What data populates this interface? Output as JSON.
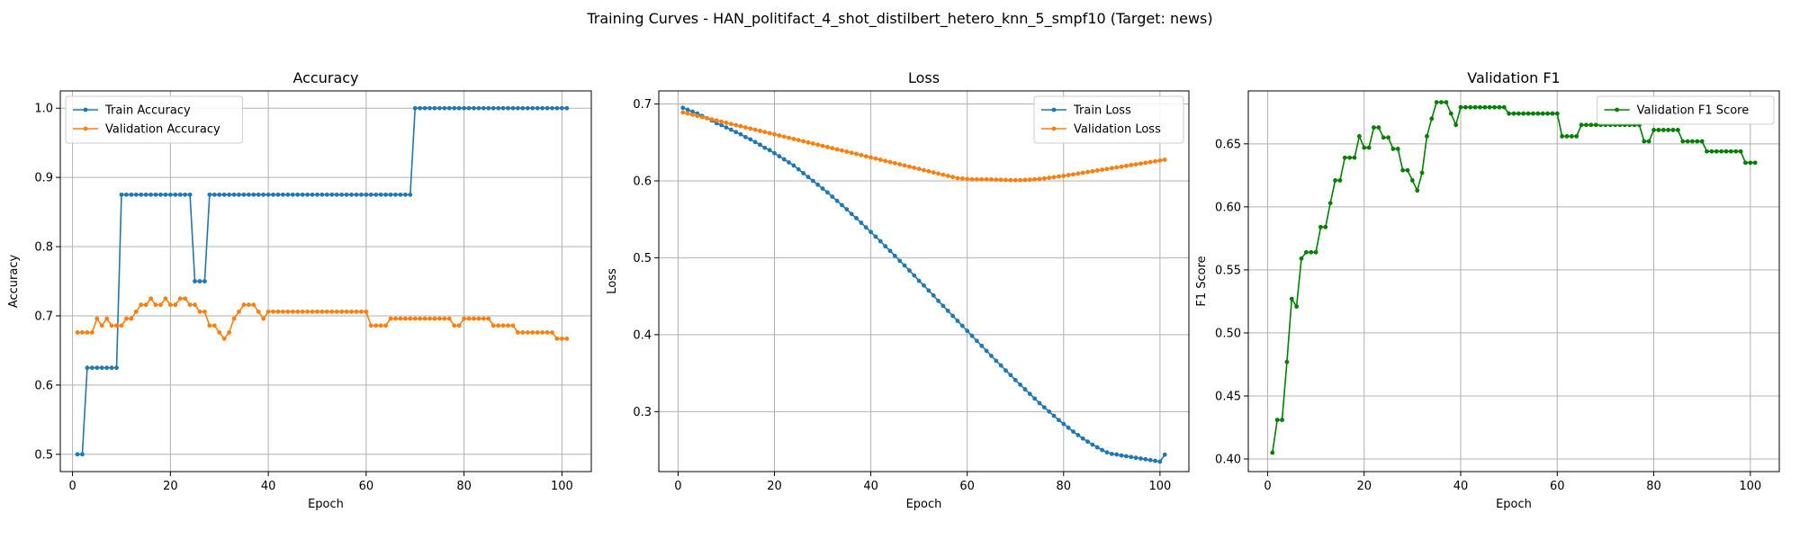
{
  "figure": {
    "suptitle": "Training Curves - HAN_politifact_4_shot_distilbert_hetero_knn_5_smpf10 (Target: news)"
  },
  "colors": {
    "train": "#1f77b4",
    "validation": "#ff7f0e",
    "f1": "#008000",
    "grid": "#b0b0b0"
  },
  "chart_data": [
    {
      "type": "line",
      "title": "Accuracy",
      "xlabel": "Epoch",
      "ylabel": "Accuracy",
      "xlim": [
        -2.5,
        106
      ],
      "ylim": [
        0.475,
        1.025
      ],
      "xticks": [
        0,
        20,
        40,
        60,
        80,
        100
      ],
      "yticks": [
        0.5,
        0.6,
        0.7,
        0.8,
        0.9,
        1.0
      ],
      "ytick_labels": [
        "0.5",
        "0.6",
        "0.7",
        "0.8",
        "0.9",
        "1.0"
      ],
      "grid": true,
      "legend": "upper left",
      "series": [
        {
          "name": "Train Accuracy",
          "color": "#1f77b4",
          "x_start": 1,
          "values": [
            0.5,
            0.5,
            0.625,
            0.625,
            0.625,
            0.625,
            0.625,
            0.625,
            0.625,
            0.875,
            0.875,
            0.875,
            0.875,
            0.875,
            0.875,
            0.875,
            0.875,
            0.875,
            0.875,
            0.875,
            0.875,
            0.875,
            0.875,
            0.875,
            0.75,
            0.75,
            0.75,
            0.875,
            0.875,
            0.875,
            0.875,
            0.875,
            0.875,
            0.875,
            0.875,
            0.875,
            0.875,
            0.875,
            0.875,
            0.875,
            0.875,
            0.875,
            0.875,
            0.875,
            0.875,
            0.875,
            0.875,
            0.875,
            0.875,
            0.875,
            0.875,
            0.875,
            0.875,
            0.875,
            0.875,
            0.875,
            0.875,
            0.875,
            0.875,
            0.875,
            0.875,
            0.875,
            0.875,
            0.875,
            0.875,
            0.875,
            0.875,
            0.875,
            0.875,
            1.0,
            1.0,
            1.0,
            1.0,
            1.0,
            1.0,
            1.0,
            1.0,
            1.0,
            1.0,
            1.0,
            1.0,
            1.0,
            1.0,
            1.0,
            1.0,
            1.0,
            1.0,
            1.0,
            1.0,
            1.0,
            1.0,
            1.0,
            1.0,
            1.0,
            1.0,
            1.0,
            1.0,
            1.0,
            1.0,
            1.0,
            1.0
          ]
        },
        {
          "name": "Validation Accuracy",
          "color": "#ff7f0e",
          "x_start": 1,
          "values": [
            0.676,
            0.676,
            0.676,
            0.676,
            0.696,
            0.686,
            0.696,
            0.686,
            0.686,
            0.686,
            0.696,
            0.696,
            0.706,
            0.716,
            0.716,
            0.725,
            0.716,
            0.716,
            0.725,
            0.716,
            0.716,
            0.725,
            0.725,
            0.716,
            0.716,
            0.706,
            0.706,
            0.686,
            0.686,
            0.676,
            0.667,
            0.676,
            0.696,
            0.706,
            0.716,
            0.716,
            0.716,
            0.706,
            0.696,
            0.706,
            0.706,
            0.706,
            0.706,
            0.706,
            0.706,
            0.706,
            0.706,
            0.706,
            0.706,
            0.706,
            0.706,
            0.706,
            0.706,
            0.706,
            0.706,
            0.706,
            0.706,
            0.706,
            0.706,
            0.706,
            0.686,
            0.686,
            0.686,
            0.686,
            0.696,
            0.696,
            0.696,
            0.696,
            0.696,
            0.696,
            0.696,
            0.696,
            0.696,
            0.696,
            0.696,
            0.696,
            0.696,
            0.686,
            0.686,
            0.696,
            0.696,
            0.696,
            0.696,
            0.696,
            0.696,
            0.686,
            0.686,
            0.686,
            0.686,
            0.686,
            0.676,
            0.676,
            0.676,
            0.676,
            0.676,
            0.676,
            0.676,
            0.676,
            0.667,
            0.667,
            0.667
          ]
        }
      ]
    },
    {
      "type": "line",
      "title": "Loss",
      "xlabel": "Epoch",
      "ylabel": "Loss",
      "xlim": [
        -4,
        106
      ],
      "ylim": [
        0.222,
        0.717
      ],
      "xticks": [
        0,
        20,
        40,
        60,
        80,
        100
      ],
      "yticks": [
        0.3,
        0.4,
        0.5,
        0.6,
        0.7
      ],
      "ytick_labels": [
        "0.3",
        "0.4",
        "0.5",
        "0.6",
        "0.7"
      ],
      "grid": true,
      "legend": "upper right",
      "series": [
        {
          "name": "Train Loss",
          "color": "#1f77b4",
          "x_start": 1,
          "values": [
            0.695,
            0.6925,
            0.69,
            0.6875,
            0.6845,
            0.6815,
            0.6785,
            0.675,
            0.6725,
            0.6695,
            0.6665,
            0.6635,
            0.6605,
            0.657,
            0.654,
            0.6505,
            0.647,
            0.643,
            0.64,
            0.636,
            0.632,
            0.628,
            0.624,
            0.62,
            0.615,
            0.61,
            0.605,
            0.6,
            0.595,
            0.59,
            0.585,
            0.5795,
            0.574,
            0.5685,
            0.563,
            0.557,
            0.5515,
            0.5455,
            0.5395,
            0.5335,
            0.5275,
            0.5215,
            0.515,
            0.509,
            0.5025,
            0.496,
            0.49,
            0.4835,
            0.477,
            0.47,
            0.464,
            0.4575,
            0.451,
            0.444,
            0.4375,
            0.431,
            0.4245,
            0.418,
            0.4115,
            0.405,
            0.3985,
            0.392,
            0.3855,
            0.379,
            0.3725,
            0.366,
            0.36,
            0.3535,
            0.3475,
            0.341,
            0.335,
            0.329,
            0.323,
            0.317,
            0.311,
            0.3055,
            0.3,
            0.2945,
            0.289,
            0.284,
            0.279,
            0.274,
            0.2695,
            0.265,
            0.261,
            0.257,
            0.2535,
            0.25,
            0.247,
            0.245,
            0.2443,
            0.243,
            0.242,
            0.241,
            0.24,
            0.239,
            0.238,
            0.237,
            0.236,
            0.235,
            0.244
          ]
        },
        {
          "name": "Validation Loss",
          "color": "#ff7f0e",
          "x_start": 1,
          "values": [
            0.689,
            0.6875,
            0.686,
            0.6845,
            0.683,
            0.6815,
            0.68,
            0.6785,
            0.677,
            0.6755,
            0.674,
            0.6725,
            0.671,
            0.6695,
            0.668,
            0.6665,
            0.665,
            0.6635,
            0.662,
            0.6605,
            0.659,
            0.6575,
            0.656,
            0.6545,
            0.653,
            0.6515,
            0.65,
            0.6485,
            0.647,
            0.6455,
            0.644,
            0.6425,
            0.641,
            0.6395,
            0.638,
            0.6365,
            0.635,
            0.6335,
            0.632,
            0.6305,
            0.629,
            0.6275,
            0.626,
            0.6245,
            0.623,
            0.6215,
            0.62,
            0.6185,
            0.617,
            0.6155,
            0.614,
            0.6125,
            0.611,
            0.6095,
            0.608,
            0.6065,
            0.605,
            0.6035,
            0.603,
            0.6025,
            0.602,
            0.602,
            0.602,
            0.602,
            0.6018,
            0.6016,
            0.6014,
            0.6012,
            0.601,
            0.601,
            0.601,
            0.6012,
            0.6015,
            0.602,
            0.6025,
            0.6032,
            0.604,
            0.6048,
            0.6056,
            0.6065,
            0.6075,
            0.6085,
            0.6095,
            0.6105,
            0.6115,
            0.6125,
            0.6135,
            0.6145,
            0.6155,
            0.6165,
            0.6175,
            0.6185,
            0.6195,
            0.6205,
            0.6215,
            0.6225,
            0.6235,
            0.6245,
            0.6255,
            0.6265,
            0.6275
          ]
        }
      ]
    },
    {
      "type": "line",
      "title": "Validation F1",
      "xlabel": "Epoch",
      "ylabel": "F1 Score",
      "xlim": [
        -4,
        106
      ],
      "ylim": [
        0.39,
        0.692
      ],
      "xticks": [
        0,
        20,
        40,
        60,
        80,
        100
      ],
      "yticks": [
        0.4,
        0.45,
        0.5,
        0.55,
        0.6,
        0.65
      ],
      "ytick_labels": [
        "0.40",
        "0.45",
        "0.50",
        "0.55",
        "0.60",
        "0.65"
      ],
      "grid": true,
      "legend": "upper right",
      "series": [
        {
          "name": "Validation F1 Score",
          "color": "#008000",
          "x_start": 1,
          "values": [
            0.405,
            0.431,
            0.431,
            0.477,
            0.527,
            0.521,
            0.559,
            0.564,
            0.564,
            0.564,
            0.584,
            0.584,
            0.603,
            0.621,
            0.621,
            0.639,
            0.639,
            0.639,
            0.656,
            0.647,
            0.647,
            0.663,
            0.663,
            0.655,
            0.655,
            0.646,
            0.646,
            0.629,
            0.629,
            0.621,
            0.613,
            0.627,
            0.656,
            0.67,
            0.683,
            0.683,
            0.683,
            0.674,
            0.665,
            0.679,
            0.679,
            0.679,
            0.679,
            0.679,
            0.679,
            0.679,
            0.679,
            0.679,
            0.679,
            0.674,
            0.674,
            0.674,
            0.674,
            0.674,
            0.674,
            0.674,
            0.674,
            0.674,
            0.674,
            0.674,
            0.656,
            0.656,
            0.656,
            0.656,
            0.665,
            0.665,
            0.665,
            0.665,
            0.665,
            0.665,
            0.665,
            0.665,
            0.665,
            0.665,
            0.665,
            0.665,
            0.665,
            0.652,
            0.652,
            0.661,
            0.661,
            0.661,
            0.661,
            0.661,
            0.661,
            0.652,
            0.652,
            0.652,
            0.652,
            0.652,
            0.644,
            0.644,
            0.644,
            0.644,
            0.644,
            0.644,
            0.644,
            0.644,
            0.635,
            0.635,
            0.635
          ]
        }
      ]
    }
  ]
}
